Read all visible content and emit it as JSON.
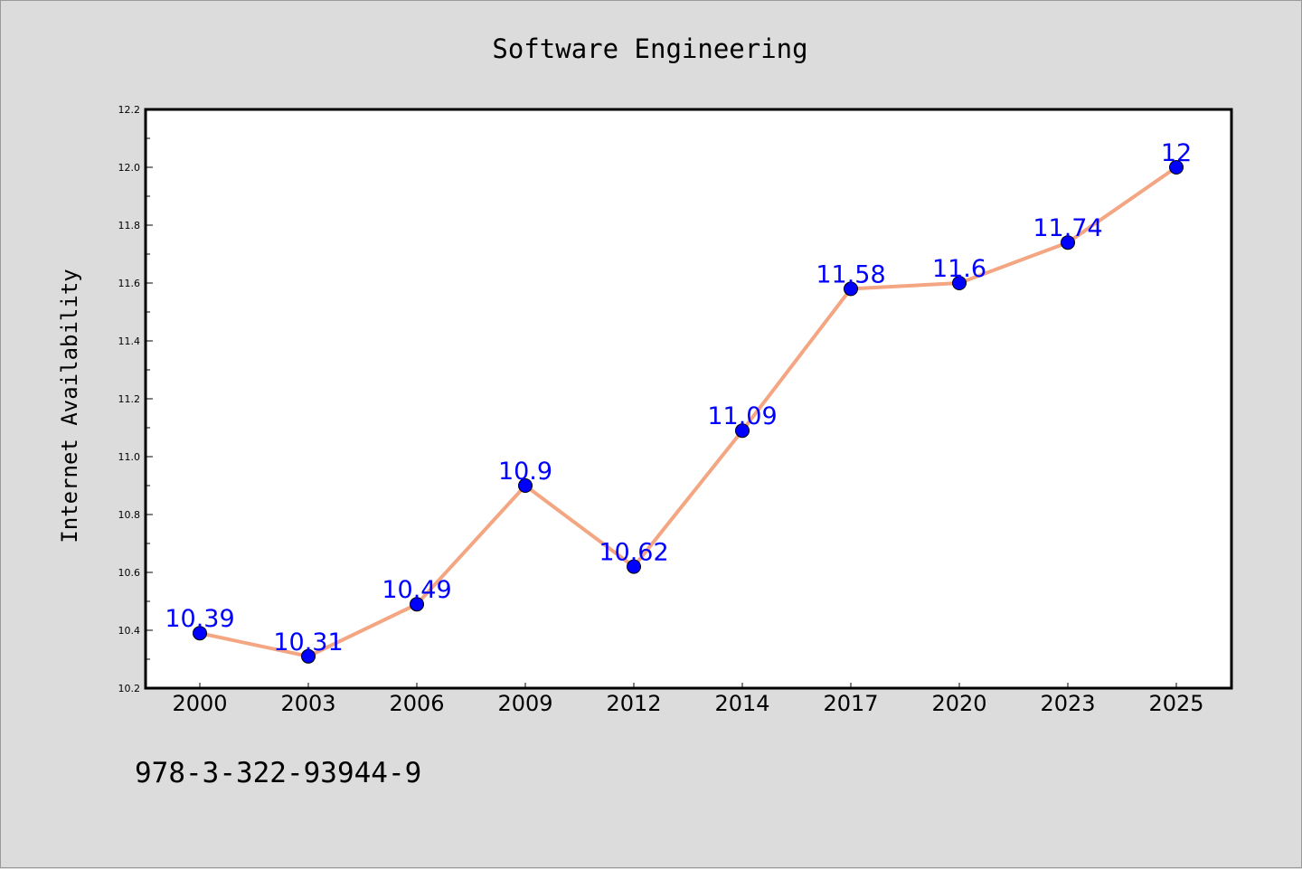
{
  "chart_data": {
    "type": "line",
    "title": "Software Engineering",
    "xlabel": "",
    "ylabel": "Internet Availability",
    "categories": [
      "2000",
      "2003",
      "2006",
      "2009",
      "2012",
      "2014",
      "2017",
      "2020",
      "2023",
      "2025"
    ],
    "series": [
      {
        "values": [
          10.39,
          10.31,
          10.49,
          10.9,
          10.62,
          11.09,
          11.58,
          11.6,
          11.74,
          12.0
        ],
        "data_labels": [
          "10.39",
          "10.31",
          "10.49",
          "10.9",
          "10.62",
          "11.09",
          "11.58",
          "11.6",
          "11.74",
          "12"
        ],
        "line_color": "#f4a582",
        "marker_color": "#0000ff",
        "label_color": "#0000ff"
      }
    ],
    "ylim": [
      10.2,
      12.2
    ],
    "y_ticks": [
      "10.2",
      "10.4",
      "10.6",
      "10.8",
      "11.0",
      "11.2",
      "11.4",
      "11.6",
      "11.8",
      "12.0",
      "12.2"
    ],
    "grid": false,
    "legend": "none"
  },
  "footer": {
    "isbn": "978-3-322-93944-9"
  },
  "colors": {
    "background": "#dcdcdc",
    "plot_area": "#ffffff",
    "axis": "#000000"
  }
}
